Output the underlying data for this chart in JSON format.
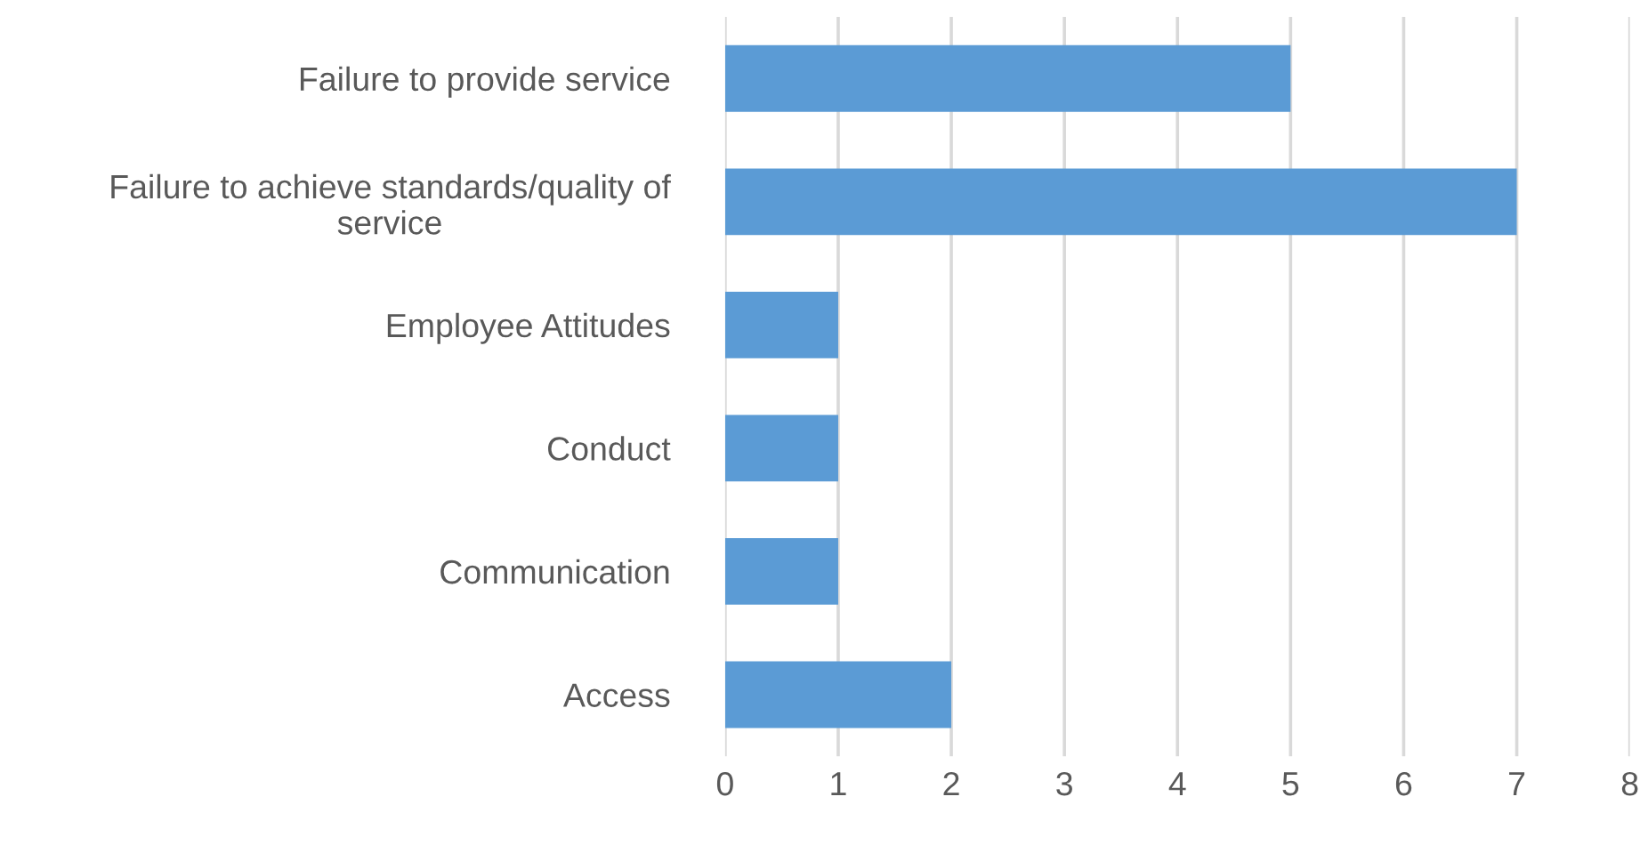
{
  "chart_data": {
    "type": "bar",
    "orientation": "horizontal",
    "categories": [
      "Failure to provide service",
      "Failure to achieve standards/quality of\nservice",
      "Employee Attitudes",
      "Conduct",
      "Communication",
      "Access"
    ],
    "values": [
      5,
      7,
      1,
      1,
      1,
      2
    ],
    "color": "#5b9bd5",
    "xlim": [
      0,
      8
    ],
    "xticks": [
      0,
      1,
      2,
      3,
      4,
      5,
      6,
      7,
      8
    ],
    "grid": "x"
  }
}
